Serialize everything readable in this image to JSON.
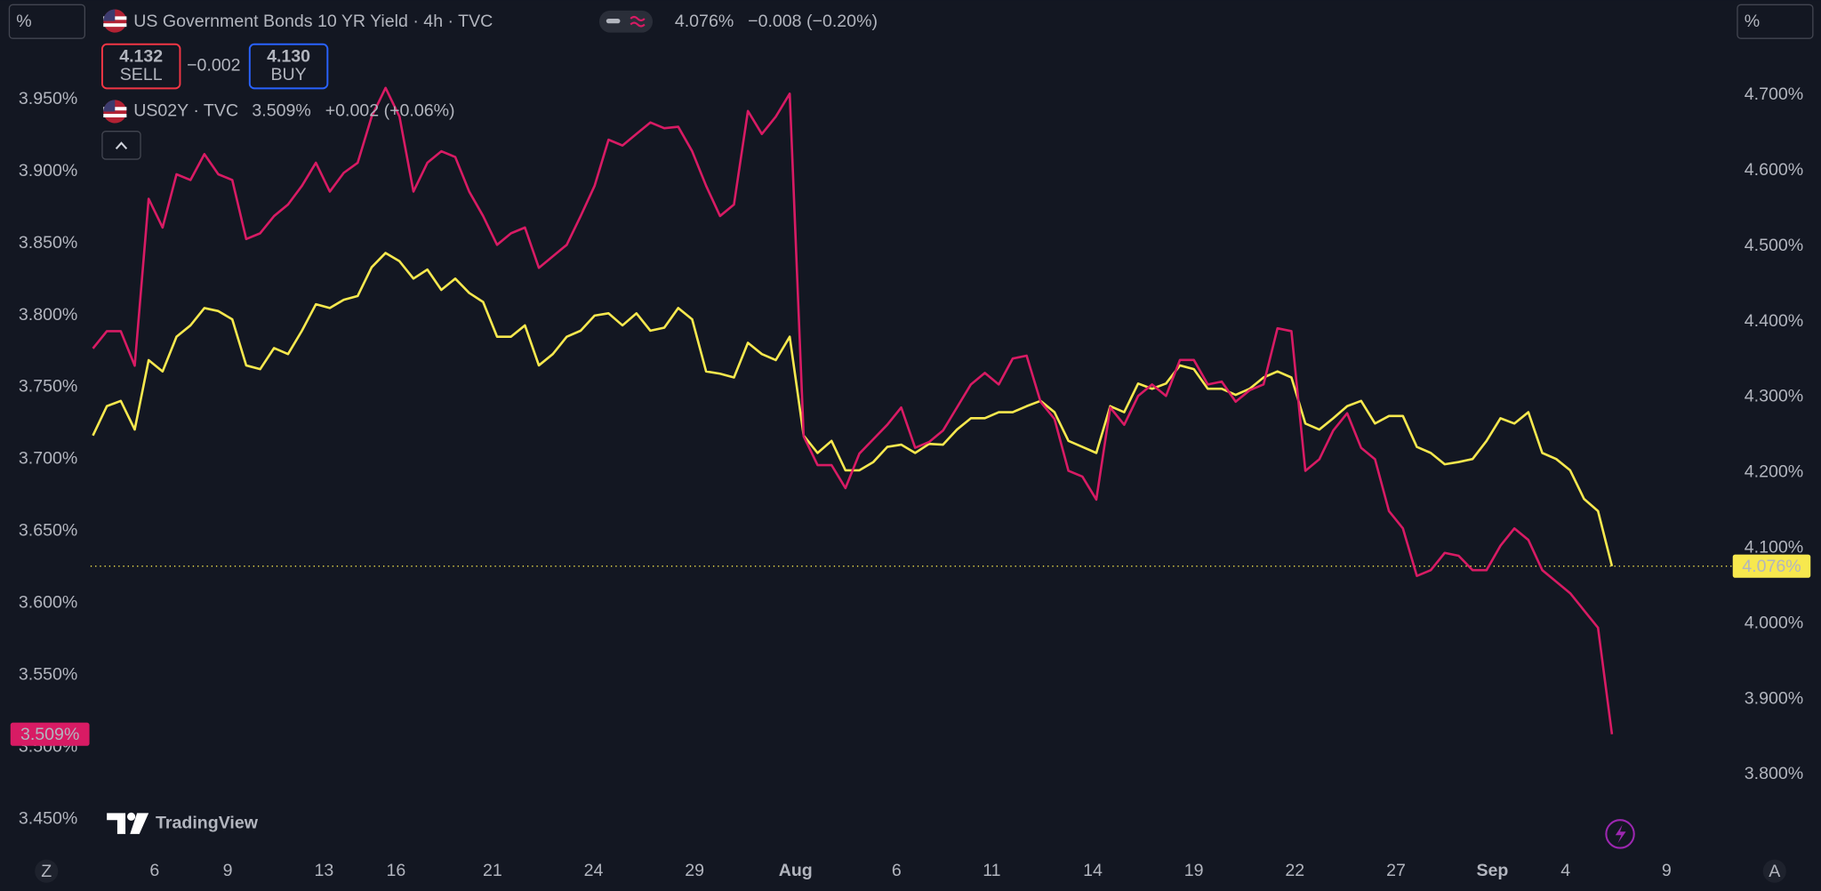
{
  "ui": {
    "left_scale_button": "%",
    "right_scale_button": "%",
    "left_corner_button": "Z",
    "right_corner_button": "A",
    "brand": "TradingView"
  },
  "trade": {
    "sell_price": "4.132",
    "sell": "SELL",
    "spread": "−0.002",
    "buy_price": "4.130",
    "buy": "BUY"
  },
  "chart_data": {
    "type": "line",
    "xlim": [
      0,
      118
    ],
    "xticks": [
      {
        "value": 4.42,
        "label": "6"
      },
      {
        "value": 9.67,
        "label": "9"
      },
      {
        "value": 16.58,
        "label": "13"
      },
      {
        "value": 21.75,
        "label": "16"
      },
      {
        "value": 28.67,
        "label": "21"
      },
      {
        "value": 35.92,
        "label": "24"
      },
      {
        "value": 43.17,
        "label": "29"
      },
      {
        "value": 50.42,
        "label": "Aug"
      },
      {
        "value": 57.67,
        "label": "6"
      },
      {
        "value": 64.5,
        "label": "11"
      },
      {
        "value": 71.75,
        "label": "14"
      },
      {
        "value": 79,
        "label": "19"
      },
      {
        "value": 86.25,
        "label": "22"
      },
      {
        "value": 93.5,
        "label": "27"
      },
      {
        "value": 100.42,
        "label": "Sep"
      },
      {
        "value": 105.67,
        "label": "4"
      },
      {
        "value": 112.92,
        "label": "9"
      }
    ],
    "ylim": [
      3.426,
      4.019
    ],
    "yticks": [
      {
        "value": 3.45,
        "label": "3.450%"
      },
      {
        "value": 3.5,
        "label": "3.500%"
      },
      {
        "value": 3.55,
        "label": "3.550%"
      },
      {
        "value": 3.6,
        "label": "3.600%"
      },
      {
        "value": 3.65,
        "label": "3.650%"
      },
      {
        "value": 3.7,
        "label": "3.700%"
      },
      {
        "value": 3.75,
        "label": "3.750%"
      },
      {
        "value": 3.8,
        "label": "3.800%"
      },
      {
        "value": 3.85,
        "label": "3.850%"
      },
      {
        "value": 3.9,
        "label": "3.900%"
      },
      {
        "value": 3.95,
        "label": "3.950%"
      }
    ],
    "y2lim": [
      3.695,
      4.826
    ],
    "y2ticks": [
      {
        "value": 3.8,
        "label": "3.800%"
      },
      {
        "value": 3.9,
        "label": "3.900%"
      },
      {
        "value": 4.0,
        "label": "4.000%"
      },
      {
        "value": 4.1,
        "label": "4.100%"
      },
      {
        "value": 4.2,
        "label": "4.200%"
      },
      {
        "value": 4.3,
        "label": "4.300%"
      },
      {
        "value": 4.4,
        "label": "4.400%"
      },
      {
        "value": 4.5,
        "label": "4.500%"
      },
      {
        "value": 4.6,
        "label": "4.600%"
      },
      {
        "value": 4.7,
        "label": "4.700%"
      }
    ],
    "grid": false,
    "series": [
      {
        "name": "US Government Bonds 10 YR Yield · 4h · TVC",
        "color": "#f7e84e",
        "axis": "y2",
        "price_line": true,
        "last": "4.076%",
        "change": "−0.008 (−0.20%)",
        "values": [
          4.249,
          4.288,
          4.295,
          4.257,
          4.349,
          4.334,
          4.38,
          4.395,
          4.418,
          4.414,
          4.403,
          4.342,
          4.337,
          4.365,
          4.357,
          4.388,
          4.423,
          4.418,
          4.429,
          4.434,
          4.472,
          4.491,
          4.48,
          4.457,
          4.469,
          4.442,
          4.457,
          4.438,
          4.426,
          4.38,
          4.38,
          4.395,
          4.342,
          4.357,
          4.38,
          4.388,
          4.408,
          4.411,
          4.395,
          4.411,
          4.388,
          4.392,
          4.418,
          4.403,
          4.334,
          4.331,
          4.326,
          4.372,
          4.357,
          4.349,
          4.38,
          4.249,
          4.226,
          4.242,
          4.203,
          4.203,
          4.214,
          4.234,
          4.237,
          4.226,
          4.238,
          4.237,
          4.257,
          4.272,
          4.272,
          4.28,
          4.28,
          4.288,
          4.295,
          4.28,
          4.242,
          4.234,
          4.226,
          4.288,
          4.28,
          4.318,
          4.311,
          4.318,
          4.342,
          4.337,
          4.311,
          4.311,
          4.303,
          4.311,
          4.326,
          4.334,
          4.326,
          4.265,
          4.257,
          4.272,
          4.288,
          4.295,
          4.265,
          4.275,
          4.275,
          4.234,
          4.226,
          4.211,
          4.214,
          4.218,
          4.242,
          4.272,
          4.265,
          4.28,
          4.226,
          4.218,
          4.203,
          4.165,
          4.149,
          4.076
        ]
      },
      {
        "name": "US02Y · TVC",
        "color": "#d81b64",
        "axis": "y",
        "price_line": false,
        "last": "3.509%",
        "change": "+0.002 (+0.06%)",
        "values": [
          3.777,
          3.789,
          3.789,
          3.765,
          3.881,
          3.861,
          3.898,
          3.894,
          3.912,
          3.898,
          3.894,
          3.853,
          3.857,
          3.869,
          3.877,
          3.89,
          3.906,
          3.886,
          3.899,
          3.906,
          3.938,
          3.958,
          3.938,
          3.886,
          3.906,
          3.914,
          3.91,
          3.886,
          3.869,
          3.849,
          3.857,
          3.861,
          3.833,
          3.841,
          3.849,
          3.869,
          3.89,
          3.922,
          3.918,
          3.926,
          3.934,
          3.93,
          3.931,
          3.914,
          3.89,
          3.869,
          3.877,
          3.942,
          3.926,
          3.938,
          3.954,
          3.716,
          3.696,
          3.696,
          3.68,
          3.704,
          3.714,
          3.724,
          3.736,
          3.708,
          3.712,
          3.72,
          3.736,
          3.752,
          3.76,
          3.752,
          3.77,
          3.772,
          3.74,
          3.728,
          3.692,
          3.688,
          3.672,
          3.736,
          3.724,
          3.744,
          3.752,
          3.744,
          3.769,
          3.769,
          3.752,
          3.754,
          3.74,
          3.748,
          3.752,
          3.791,
          3.789,
          3.692,
          3.7,
          3.72,
          3.732,
          3.708,
          3.7,
          3.664,
          3.652,
          3.619,
          3.623,
          3.635,
          3.633,
          3.623,
          3.623,
          3.64,
          3.652,
          3.644,
          3.623,
          3.615,
          3.607,
          3.595,
          3.583,
          3.509
        ]
      }
    ]
  }
}
